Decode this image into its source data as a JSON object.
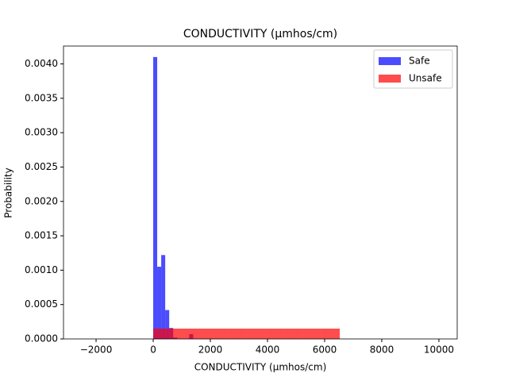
{
  "chart_data": {
    "type": "histogram",
    "title": "CONDUCTIVITY (µmhos/cm)",
    "x_label": "CONDUCTIVITY (µmhos/cm)",
    "y_label": "Probability",
    "series": [
      {
        "name": "Safe",
        "color": "#0000ff",
        "opacity": 0.7,
        "bins": [
          0,
          140,
          280,
          420,
          560,
          700,
          840,
          980,
          1120,
          1260,
          1400
        ],
        "values": [
          0.0041,
          0.00105,
          0.00122,
          0.00042,
          0.00016,
          2e-05,
          0,
          0,
          0,
          7e-05
        ]
      },
      {
        "name": "Unsafe",
        "color": "#ff0000",
        "opacity": 0.7,
        "bins": [
          0,
          653,
          1306,
          1959,
          2612,
          3265,
          3918,
          4571,
          5224,
          5877,
          6530
        ],
        "values": [
          0.00015,
          0.00015,
          0.00015,
          0.00015,
          0.00015,
          0.00015,
          0.00015,
          0.00015,
          0.00015,
          0.00015
        ]
      }
    ],
    "xlim": [
      -3140,
      10640
    ],
    "ylim": [
      0,
      0.00426
    ],
    "xticks": [
      {
        "value": -2000,
        "label": "−2000"
      },
      0,
      2000,
      4000,
      6000,
      8000,
      10000
    ],
    "yticks": [
      {
        "value": 0,
        "label": "0.0000"
      },
      {
        "value": 0.0005,
        "label": "0.0005"
      },
      {
        "value": 0.001,
        "label": "0.0010"
      },
      {
        "value": 0.0015,
        "label": "0.0015"
      },
      {
        "value": 0.002,
        "label": "0.0020"
      },
      {
        "value": 0.0025,
        "label": "0.0025"
      },
      {
        "value": 0.003,
        "label": "0.0030"
      },
      {
        "value": 0.0035,
        "label": "0.0035"
      },
      {
        "value": 0.004,
        "label": "0.0040"
      }
    ],
    "legend": "upper right"
  }
}
